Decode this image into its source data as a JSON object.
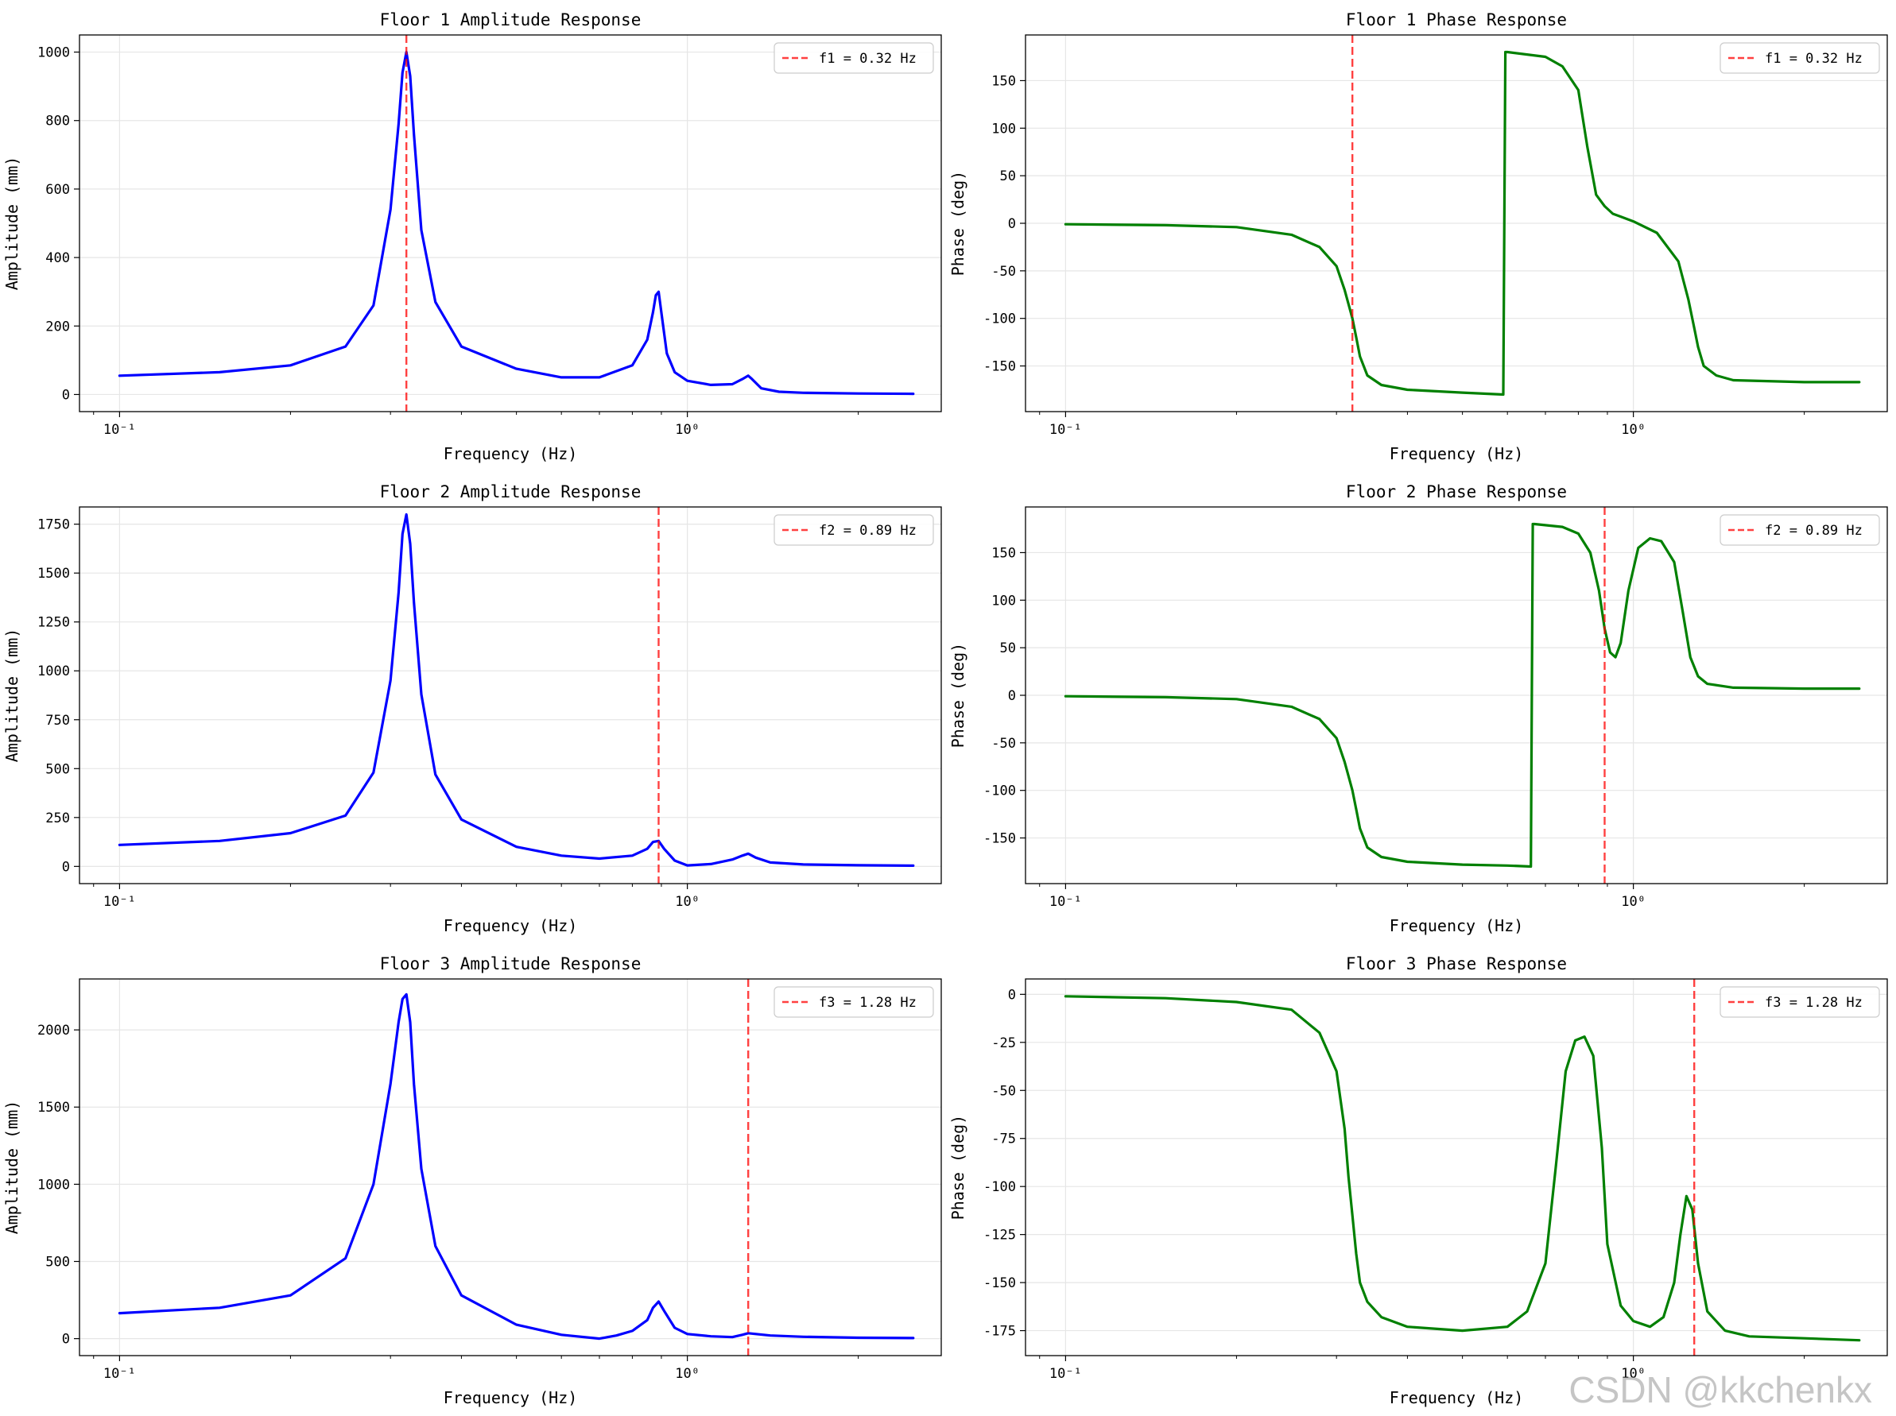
{
  "figure": {
    "watermark": "CSDN @kkchenkx"
  },
  "chart_data": [
    {
      "id": "amp1",
      "type": "line",
      "title": "Floor 1 Amplitude Response",
      "xlabel": "Frequency (Hz)",
      "ylabel": "Amplitude (mm)",
      "xscale": "log",
      "xlim": [
        0.085,
        2.8
      ],
      "ylim": [
        -50,
        1050
      ],
      "xticks": [
        {
          "value": 0.1,
          "label": "10⁻¹"
        },
        {
          "value": 1,
          "label": "10⁰"
        }
      ],
      "yticks": [
        0,
        200,
        400,
        600,
        800,
        1000
      ],
      "grid": true,
      "legend_position": "upper right",
      "series": [
        {
          "name": "amplitude",
          "color": "#0000ff",
          "x": [
            0.1,
            0.15,
            0.2,
            0.25,
            0.28,
            0.3,
            0.31,
            0.315,
            0.32,
            0.325,
            0.33,
            0.34,
            0.36,
            0.4,
            0.5,
            0.6,
            0.7,
            0.8,
            0.85,
            0.87,
            0.88,
            0.89,
            0.9,
            0.92,
            0.95,
            1.0,
            1.1,
            1.2,
            1.25,
            1.28,
            1.3,
            1.35,
            1.45,
            1.6,
            2.0,
            2.5
          ],
          "y": [
            55,
            65,
            85,
            140,
            260,
            540,
            790,
            940,
            1000,
            930,
            760,
            480,
            270,
            140,
            75,
            50,
            50,
            85,
            160,
            240,
            290,
            300,
            240,
            120,
            65,
            40,
            28,
            30,
            45,
            55,
            45,
            18,
            8,
            5,
            3,
            2
          ]
        }
      ],
      "markers": [
        {
          "value": 0.32,
          "label": "f1 = 0.32 Hz",
          "color": "#ff0000"
        }
      ]
    },
    {
      "id": "phase1",
      "type": "line",
      "title": "Floor 1 Phase Response",
      "xlabel": "Frequency (Hz)",
      "ylabel": "Phase (deg)",
      "xscale": "log",
      "xlim": [
        0.085,
        2.8
      ],
      "ylim": [
        -198,
        198
      ],
      "xticks": [
        {
          "value": 0.1,
          "label": "10⁻¹"
        },
        {
          "value": 1,
          "label": "10⁰"
        }
      ],
      "yticks": [
        -150,
        -100,
        -50,
        0,
        50,
        100,
        150
      ],
      "grid": true,
      "legend_position": "upper right",
      "series": [
        {
          "name": "phase",
          "color": "#008000",
          "x": [
            0.1,
            0.15,
            0.2,
            0.25,
            0.28,
            0.3,
            0.31,
            0.315,
            0.32,
            0.325,
            0.33,
            0.34,
            0.36,
            0.4,
            0.5,
            0.59,
            0.595,
            0.6,
            0.7,
            0.75,
            0.8,
            0.83,
            0.86,
            0.89,
            0.92,
            0.95,
            1.0,
            1.1,
            1.2,
            1.25,
            1.28,
            1.3,
            1.33,
            1.4,
            1.5,
            2.0,
            2.5
          ],
          "y": [
            -1,
            -2,
            -4,
            -12,
            -25,
            -45,
            -70,
            -85,
            -100,
            -120,
            -140,
            -160,
            -170,
            -175,
            -178,
            -180,
            180,
            180,
            175,
            165,
            140,
            80,
            30,
            18,
            10,
            7,
            2,
            -10,
            -40,
            -80,
            -110,
            -130,
            -150,
            -160,
            -165,
            -167,
            -167
          ]
        }
      ],
      "markers": [
        {
          "value": 0.32,
          "label": "f1 = 0.32 Hz",
          "color": "#ff0000"
        }
      ]
    },
    {
      "id": "amp2",
      "type": "line",
      "title": "Floor 2 Amplitude Response",
      "xlabel": "Frequency (Hz)",
      "ylabel": "Amplitude (mm)",
      "xscale": "log",
      "xlim": [
        0.085,
        2.8
      ],
      "ylim": [
        -88,
        1838
      ],
      "xticks": [
        {
          "value": 0.1,
          "label": "10⁻¹"
        },
        {
          "value": 1,
          "label": "10⁰"
        }
      ],
      "yticks": [
        0,
        250,
        500,
        750,
        1000,
        1250,
        1500,
        1750
      ],
      "grid": true,
      "legend_position": "upper right",
      "series": [
        {
          "name": "amplitude",
          "color": "#0000ff",
          "x": [
            0.1,
            0.15,
            0.2,
            0.25,
            0.28,
            0.3,
            0.31,
            0.315,
            0.32,
            0.325,
            0.33,
            0.34,
            0.36,
            0.4,
            0.5,
            0.6,
            0.7,
            0.8,
            0.85,
            0.87,
            0.89,
            0.91,
            0.95,
            1.0,
            1.1,
            1.2,
            1.25,
            1.28,
            1.32,
            1.4,
            1.6,
            2.0,
            2.5
          ],
          "y": [
            110,
            130,
            170,
            260,
            480,
            950,
            1400,
            1700,
            1800,
            1650,
            1350,
            880,
            470,
            240,
            100,
            55,
            40,
            55,
            90,
            125,
            130,
            90,
            30,
            5,
            12,
            35,
            55,
            65,
            45,
            20,
            10,
            6,
            4
          ]
        }
      ],
      "markers": [
        {
          "value": 0.89,
          "label": "f2 = 0.89 Hz",
          "color": "#ff0000"
        }
      ]
    },
    {
      "id": "phase2",
      "type": "line",
      "title": "Floor 2 Phase Response",
      "xlabel": "Frequency (Hz)",
      "ylabel": "Phase (deg)",
      "xscale": "log",
      "xlim": [
        0.085,
        2.8
      ],
      "ylim": [
        -198,
        198
      ],
      "xticks": [
        {
          "value": 0.1,
          "label": "10⁻¹"
        },
        {
          "value": 1,
          "label": "10⁰"
        }
      ],
      "yticks": [
        -150,
        -100,
        -50,
        0,
        50,
        100,
        150
      ],
      "grid": true,
      "legend_position": "upper right",
      "series": [
        {
          "name": "phase",
          "color": "#008000",
          "x": [
            0.1,
            0.15,
            0.2,
            0.25,
            0.28,
            0.3,
            0.31,
            0.315,
            0.32,
            0.325,
            0.33,
            0.34,
            0.36,
            0.4,
            0.5,
            0.6,
            0.66,
            0.665,
            0.67,
            0.75,
            0.8,
            0.84,
            0.87,
            0.89,
            0.91,
            0.93,
            0.95,
            0.98,
            1.02,
            1.07,
            1.12,
            1.18,
            1.22,
            1.26,
            1.3,
            1.35,
            1.5,
            2.0,
            2.5
          ],
          "y": [
            -1,
            -2,
            -4,
            -12,
            -25,
            -45,
            -70,
            -85,
            -100,
            -120,
            -140,
            -160,
            -170,
            -175,
            -178,
            -179,
            -180,
            180,
            180,
            177,
            170,
            150,
            110,
            70,
            45,
            40,
            55,
            110,
            155,
            165,
            162,
            140,
            90,
            40,
            20,
            12,
            8,
            7,
            7
          ]
        }
      ],
      "markers": [
        {
          "value": 0.89,
          "label": "f2 = 0.89 Hz",
          "color": "#ff0000"
        }
      ]
    },
    {
      "id": "amp3",
      "type": "line",
      "title": "Floor 3 Amplitude Response",
      "xlabel": "Frequency (Hz)",
      "ylabel": "Amplitude (mm)",
      "xscale": "log",
      "xlim": [
        0.085,
        2.8
      ],
      "ylim": [
        -110,
        2330
      ],
      "xticks": [
        {
          "value": 0.1,
          "label": "10⁻¹"
        },
        {
          "value": 1,
          "label": "10⁰"
        }
      ],
      "yticks": [
        0,
        500,
        1000,
        1500,
        2000
      ],
      "grid": true,
      "legend_position": "upper right",
      "series": [
        {
          "name": "amplitude",
          "color": "#0000ff",
          "x": [
            0.1,
            0.15,
            0.2,
            0.25,
            0.28,
            0.3,
            0.31,
            0.315,
            0.32,
            0.325,
            0.33,
            0.34,
            0.36,
            0.4,
            0.5,
            0.6,
            0.7,
            0.75,
            0.8,
            0.85,
            0.87,
            0.89,
            0.91,
            0.95,
            1.0,
            1.1,
            1.2,
            1.25,
            1.28,
            1.32,
            1.4,
            1.6,
            2.0,
            2.5
          ],
          "y": [
            165,
            200,
            280,
            520,
            1000,
            1650,
            2050,
            2200,
            2230,
            2050,
            1650,
            1100,
            600,
            280,
            90,
            25,
            0,
            20,
            50,
            120,
            200,
            240,
            180,
            70,
            30,
            15,
            10,
            25,
            35,
            30,
            20,
            12,
            6,
            4
          ]
        }
      ],
      "markers": [
        {
          "value": 1.28,
          "label": "f3 = 1.28 Hz",
          "color": "#ff0000"
        }
      ]
    },
    {
      "id": "phase3",
      "type": "line",
      "title": "Floor 3 Phase Response",
      "xlabel": "Frequency (Hz)",
      "ylabel": "Phase (deg)",
      "xscale": "log",
      "xlim": [
        0.085,
        2.8
      ],
      "ylim": [
        -188,
        8
      ],
      "xticks": [
        {
          "value": 0.1,
          "label": "10⁻¹"
        },
        {
          "value": 1,
          "label": "10⁰"
        }
      ],
      "yticks": [
        -175,
        -150,
        -125,
        -100,
        -75,
        -50,
        -25,
        0
      ],
      "grid": true,
      "legend_position": "upper right",
      "series": [
        {
          "name": "phase",
          "color": "#008000",
          "x": [
            0.1,
            0.15,
            0.2,
            0.25,
            0.28,
            0.3,
            0.31,
            0.315,
            0.32,
            0.325,
            0.33,
            0.34,
            0.36,
            0.4,
            0.5,
            0.6,
            0.65,
            0.7,
            0.73,
            0.76,
            0.79,
            0.82,
            0.85,
            0.88,
            0.9,
            0.95,
            1.0,
            1.07,
            1.13,
            1.18,
            1.21,
            1.24,
            1.27,
            1.3,
            1.35,
            1.45,
            1.6,
            2.0,
            2.5
          ],
          "y": [
            -1,
            -2,
            -4,
            -8,
            -20,
            -40,
            -70,
            -95,
            -115,
            -135,
            -150,
            -160,
            -168,
            -173,
            -175,
            -173,
            -165,
            -140,
            -90,
            -40,
            -24,
            -22,
            -32,
            -80,
            -130,
            -162,
            -170,
            -173,
            -168,
            -150,
            -125,
            -105,
            -112,
            -140,
            -165,
            -175,
            -178,
            -179,
            -180
          ]
        }
      ],
      "markers": [
        {
          "value": 1.28,
          "label": "f3 = 1.28 Hz",
          "color": "#ff0000"
        }
      ]
    }
  ]
}
